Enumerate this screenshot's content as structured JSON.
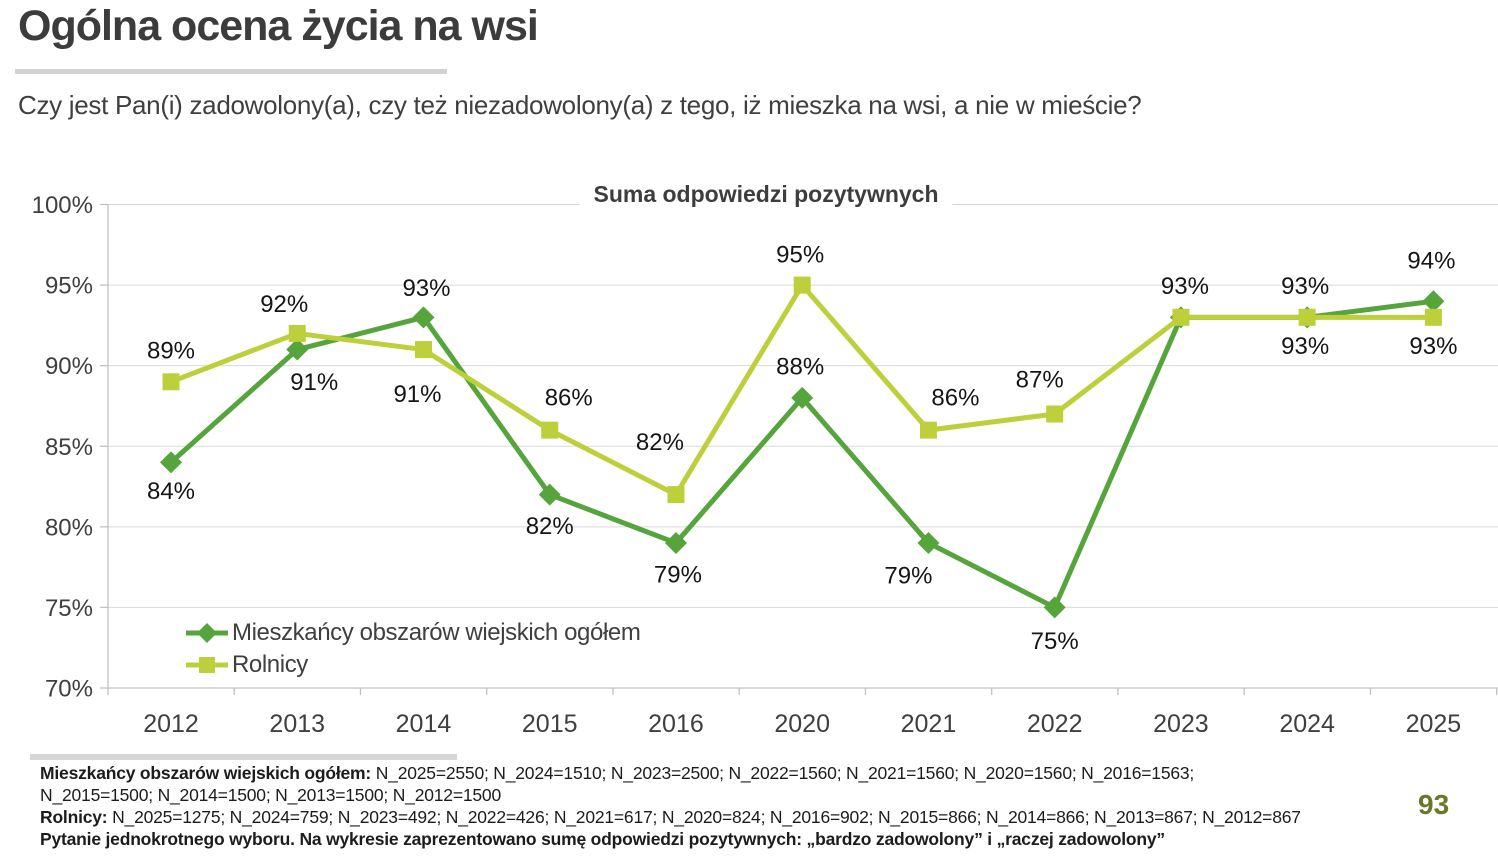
{
  "page": {
    "title": "Ogólna ocena życia na wsi",
    "question": "Czy jest Pan(i) zadowolony(a), czy też niezadowolony(a) z tego, iż mieszka na wsi, a nie w mieście?",
    "page_number": "93"
  },
  "footnotes": {
    "line1_label": "Mieszkańcy obszarów wiejskich ogółem:",
    "line1_text": "N_2025=2550; N_2024=1510; N_2023=2500; N_2022=1560; N_2021=1560; N_2020=1560; N_2016=1563;",
    "line2_text": "N_2015=1500; N_2014=1500; N_2013=1500; N_2012=1500",
    "line3_label": "Rolnicy:",
    "line3_text": "N_2025=1275; N_2024=759; N_2023=492; N_2022=426; N_2021=617; N_2020=824; N_2016=902; N_2015=866; N_2014=866; N_2013=867; N_2012=867",
    "line4_text": "Pytanie jednokrotnego wyboru. Na wykresie zaprezentowano sumę odpowiedzi pozytywnych: „bardzo zadowolony” i „raczej zadowolony”"
  },
  "colors": {
    "accent_green": "#55A43C",
    "accent_yellow_green": "#BDD03C",
    "gridline": "#D9D9D9",
    "axis": "#C2C2C2",
    "text_dark": "#3F3F3F",
    "data_label": "#151515",
    "page_number": "#6C7628",
    "divider": "#D6D6D6"
  },
  "chart_data": {
    "type": "line",
    "title": "Suma odpowiedzi pozytywnych",
    "categories": [
      "2012",
      "2013",
      "2014",
      "2015",
      "2016",
      "2020",
      "2021",
      "2022",
      "2023",
      "2024",
      "2025"
    ],
    "value_suffix": "%",
    "ylim": [
      70,
      100
    ],
    "ytick_step": 5,
    "grid": true,
    "legend_position": "bottom-left-inside",
    "series": [
      {
        "name": "Mieszkańcy obszarów wiejskich ogółem",
        "slug": "mieszkancy-ogolem",
        "marker": "diamond",
        "color": "#55A43C",
        "values": [
          84,
          91,
          93,
          82,
          79,
          88,
          79,
          75,
          93,
          93,
          94
        ],
        "labels": [
          {
            "text": "84%",
            "dx": 0,
            "dy": 29
          },
          {
            "text": "91%",
            "dx": 17,
            "dy": 33
          },
          {
            "text": "93%",
            "dx": 3,
            "dy": -29
          },
          {
            "text": "82%",
            "dx": 0,
            "dy": 32
          },
          {
            "text": "79%",
            "dx": 2,
            "dy": 32
          },
          {
            "text": "88%",
            "dx": -2,
            "dy": -31
          },
          {
            "text": "79%",
            "dx": -20,
            "dy": 33
          },
          {
            "text": "75%",
            "dx": 0,
            "dy": 34
          },
          {
            "text": "93%",
            "dx": 4,
            "dy": -31
          },
          {
            "text": "93%",
            "dx": -2,
            "dy": -31
          },
          {
            "text": "94%",
            "dx": -2,
            "dy": -40
          }
        ]
      },
      {
        "name": "Rolnicy",
        "slug": "rolnicy",
        "marker": "square",
        "color": "#BDD03C",
        "values": [
          89,
          92,
          91,
          86,
          82,
          95,
          86,
          87,
          93,
          93,
          93
        ],
        "labels": [
          {
            "text": "89%",
            "dx": 0,
            "dy": -31
          },
          {
            "text": "92%",
            "dx": -13,
            "dy": -29
          },
          {
            "text": "91%",
            "dx": -6,
            "dy": 45
          },
          {
            "text": "86%",
            "dx": 19,
            "dy": -32
          },
          {
            "text": "82%",
            "dx": -16,
            "dy": -52
          },
          {
            "text": "95%",
            "dx": -2,
            "dy": -30
          },
          {
            "text": "86%",
            "dx": 27,
            "dy": -32
          },
          {
            "text": "87%",
            "dx": -15,
            "dy": -34
          },
          {
            "text": "93%",
            "dx": 0,
            "dy": -31,
            "show": false
          },
          {
            "text": "93%",
            "dx": -2,
            "dy": 29
          },
          {
            "text": "93%",
            "dx": 0,
            "dy": 29
          }
        ]
      }
    ]
  }
}
